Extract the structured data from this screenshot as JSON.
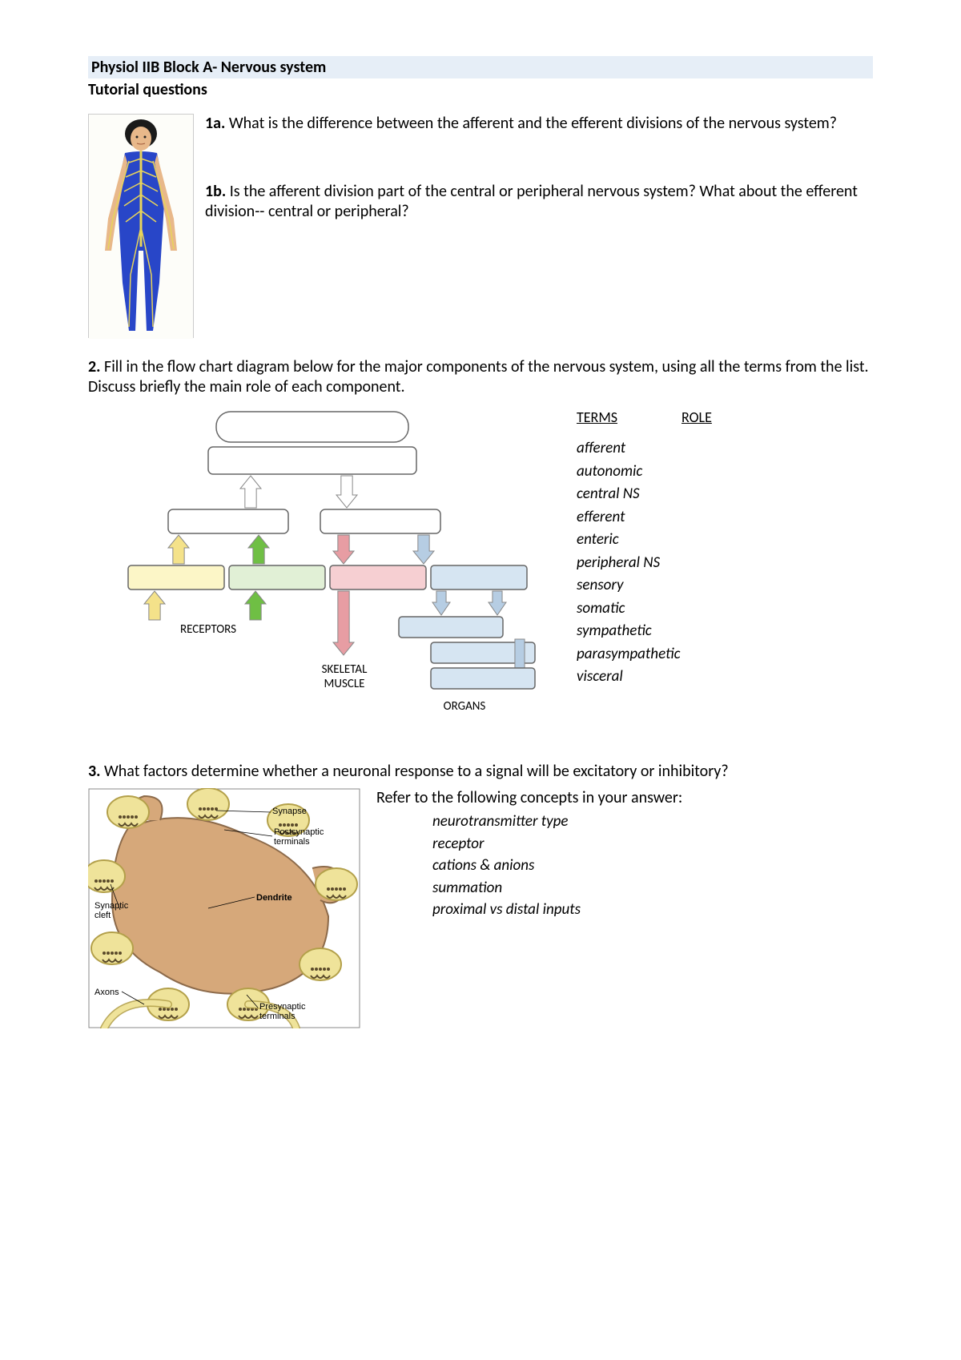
{
  "header": {
    "title": "Physiol IIB  Block A- Nervous system",
    "subtitle": "Tutorial questions"
  },
  "q1a": {
    "label": "1a.",
    "text": " What is the difference between the afferent and the efferent divisions of the nervous system?"
  },
  "q1b": {
    "label": "1b.",
    "text": " Is the afferent division part of the central or peripheral nervous system? What about the efferent division-- central or peripheral?"
  },
  "q2": {
    "label": "2.",
    "text": " Fill in the flow chart diagram below for the major components of the nervous system, using all the terms from the list.  Discuss briefly the main role of each component.",
    "terms_head": "TERMS",
    "role_head": "ROLE",
    "terms": [
      "afferent",
      "autonomic",
      "central NS",
      "efferent",
      "enteric",
      "peripheral NS",
      "sensory",
      "somatic",
      "sympathetic",
      "parasympathetic",
      "visceral"
    ],
    "flowchart": {
      "receptors_label": "RECEPTORS",
      "skeletal_label_1": "SKELETAL",
      "skeletal_label_2": "MUSCLE",
      "organs_label": "ORGANS",
      "box_border": "#666666",
      "colors": {
        "top1": "#ffffff",
        "top2": "#ffffff",
        "mid_left": "#ffffff",
        "mid_right": "#ffffff",
        "yellow": "#fcf6c7",
        "green": "#e1f0d6",
        "pink": "#f6cfd2",
        "blue": "#d6e5f2"
      },
      "arrow_colors": {
        "yellow": "#f4e28a",
        "green": "#6fbf44",
        "pink": "#e79da3",
        "blue": "#b6cde3",
        "white": "#ffffff",
        "outline": "#888888"
      }
    }
  },
  "q3": {
    "label": "3.",
    "text": " What factors determine whether a neuronal response to a signal will be excitatory or inhibitory?",
    "refer": "Refer to the following concepts in your answer:",
    "concepts": [
      "neurotransmitter type",
      "receptor",
      "cations & anions",
      "summation",
      "proximal vs distal inputs"
    ],
    "synapse": {
      "labels": {
        "synapse": "Synapse",
        "post_1": "Postsynaptic",
        "post_2": "terminals",
        "dendrite": "Dendrite",
        "cleft_1": "Synaptic",
        "cleft_2": "cleft",
        "axons": "Axons",
        "pre_1": "Presynaptic",
        "pre_2": "terminals"
      },
      "colors": {
        "bg": "#ffffff",
        "border": "#888888",
        "neuron_body": "#d6a87a",
        "neuron_edge": "#8c6a4a",
        "axon_fill": "#efe39a",
        "axon_edge": "#b3a04a",
        "vesicle": "#5a4a2a",
        "label_font": "11"
      }
    }
  },
  "body_figure": {
    "colors": {
      "hair": "#1a1a1a",
      "skin": "#e8b88a",
      "suit": "#2846c8",
      "nerve": "#e8d45a"
    }
  }
}
